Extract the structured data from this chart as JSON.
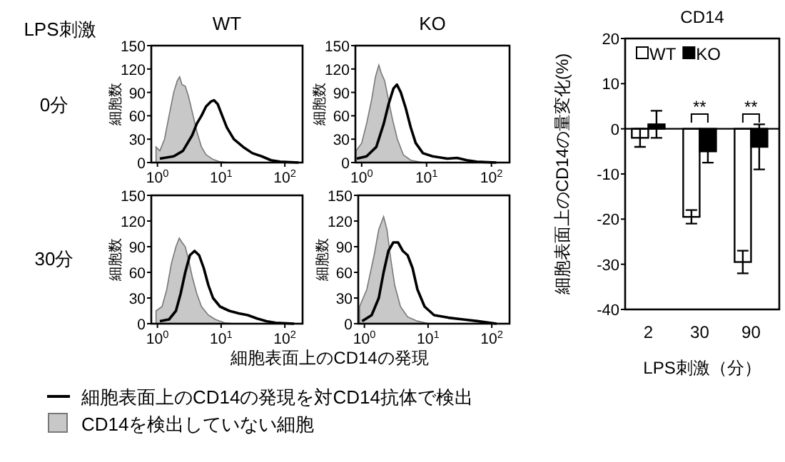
{
  "chart_data": [
    {
      "type": "line",
      "title": "WT",
      "ylabel": "細胞数",
      "annotations": [
        "LPS刺激",
        "0分"
      ],
      "log": "x",
      "legend": "bottom",
      "xlim": [
        0.8,
        190
      ],
      "ylim": [
        0,
        150
      ],
      "xticks": [
        {
          "value": 1,
          "label": "10$^{0}$"
        },
        {
          "value": 10,
          "label": "10$^{1}$"
        },
        {
          "value": 100,
          "label": "10$^{2}$"
        }
      ],
      "yticks": [
        0,
        30,
        60,
        90,
        120,
        150
      ],
      "series": [
        {
          "name": "細胞表面上のCD14の発現を対CD14抗体で検出",
          "color": "#000000",
          "x": [
            1.09,
            1.8,
            2.51,
            3.51,
            4.15,
            4.91,
            5.8,
            6.86,
            7.71,
            8.83,
            10.4,
            12.3,
            15.8,
            22.2,
            31,
            43.3,
            60.6,
            84.7,
            165
          ],
          "values": [
            5,
            8,
            15,
            35,
            50,
            60,
            72,
            78,
            80,
            75,
            60,
            45,
            30,
            20,
            12,
            8,
            3,
            1,
            0
          ]
        },
        {
          "type": "area",
          "name": "CD14を検出していない細胞",
          "color": "#c8c8c8",
          "x": [
            0.95,
            1.09,
            1.29,
            1.52,
            1.8,
            2.05,
            2.23,
            2.43,
            2.73,
            3.07,
            3.51,
            4.15,
            4.91,
            5.8,
            7.46,
            9.6,
            13.4
          ],
          "values": [
            20,
            15,
            30,
            60,
            90,
            105,
            110,
            100,
            98,
            85,
            65,
            40,
            20,
            10,
            4,
            1,
            0
          ]
        }
      ]
    },
    {
      "type": "line",
      "title": "KO",
      "ylabel": "細胞数",
      "log": "x",
      "xlim": [
        0.8,
        190
      ],
      "ylim": [
        0,
        150
      ],
      "xticks": [
        {
          "value": 1,
          "label": "10$^{0}$"
        },
        {
          "value": 10,
          "label": "10$^{1}$"
        },
        {
          "value": 100,
          "label": "10$^{2}$"
        }
      ],
      "yticks": [
        0,
        30,
        60,
        90,
        120,
        150
      ],
      "series": [
        {
          "color": "#000000",
          "x": [
            0.84,
            1.19,
            1.68,
            2.19,
            2.6,
            3.09,
            3.49,
            4.01,
            4.77,
            5.7,
            6.8,
            8.8,
            12.4,
            20.9,
            29.5,
            41.9,
            59.3,
            119
          ],
          "values": [
            5,
            8,
            20,
            50,
            75,
            95,
            100,
            90,
            70,
            45,
            25,
            12,
            8,
            5,
            6,
            3,
            1,
            0
          ]
        },
        {
          "type": "area",
          "color": "#c8c8c8",
          "x": [
            0.82,
            1,
            1.19,
            1.42,
            1.63,
            1.84,
            2,
            2.26,
            2.6,
            2.99,
            3.55,
            4.38,
            5.7,
            8.8
          ],
          "values": [
            15,
            25,
            50,
            80,
            110,
            125,
            115,
            105,
            80,
            55,
            30,
            10,
            3,
            0
          ]
        }
      ]
    },
    {
      "type": "line",
      "ylabel": "細胞数",
      "xlabel": "細胞表面上のCD14の発現",
      "annotations": [
        "30分"
      ],
      "log": "x",
      "xlim": [
        0.8,
        190
      ],
      "ylim": [
        0,
        150
      ],
      "xticks": [
        {
          "value": 1,
          "label": "10$^{0}$"
        },
        {
          "value": 10,
          "label": "10$^{1}$"
        },
        {
          "value": 100,
          "label": "10$^{2}$"
        }
      ],
      "yticks": [
        0,
        30,
        60,
        90,
        120,
        150
      ],
      "series": [
        {
          "color": "#000000",
          "x": [
            1.09,
            1.52,
            1.95,
            2.31,
            2.73,
            3.23,
            3.82,
            4.51,
            5.33,
            6.3,
            7.46,
            9.6,
            13.4,
            18.8,
            26.2,
            36.6,
            51.2,
            71.5,
            140
          ],
          "values": [
            3,
            5,
            15,
            35,
            60,
            80,
            85,
            80,
            65,
            45,
            30,
            20,
            15,
            12,
            10,
            6,
            3,
            1,
            0
          ]
        },
        {
          "type": "area",
          "color": "#c8c8c8",
          "x": [
            0.95,
            1.18,
            1.4,
            1.65,
            1.95,
            2.2,
            2.43,
            2.73,
            3.07,
            3.51,
            4.15,
            4.91,
            6.3,
            8.1,
            11.3,
            15.8
          ],
          "values": [
            15,
            20,
            40,
            70,
            90,
            100,
            95,
            90,
            75,
            55,
            35,
            20,
            10,
            5,
            1,
            0
          ]
        }
      ]
    },
    {
      "type": "line",
      "ylabel": "細胞数",
      "log": "x",
      "xlim": [
        0.8,
        190
      ],
      "ylim": [
        0,
        150
      ],
      "xticks": [
        {
          "value": 1,
          "label": "10$^{0}$"
        },
        {
          "value": 10,
          "label": "10$^{1}$"
        },
        {
          "value": 100,
          "label": "10$^{2}$"
        }
      ],
      "yticks": [
        0,
        30,
        60,
        90,
        120,
        150
      ],
      "series": [
        {
          "color": "#000000",
          "x": [
            0.92,
            1.3,
            1.68,
            2,
            2.38,
            2.84,
            3.37,
            4.01,
            4.77,
            5.7,
            6.8,
            8.8,
            12.4,
            20.9,
            35.3,
            59.3,
            119
          ],
          "values": [
            3,
            10,
            30,
            60,
            85,
            95,
            95,
            85,
            80,
            65,
            40,
            20,
            10,
            7,
            5,
            3,
            0
          ]
        },
        {
          "type": "area",
          "color": "#c8c8c8",
          "x": [
            0.84,
            1.09,
            1.42,
            1.68,
            2,
            2.26,
            2.6,
            2.99,
            3.68,
            4.77,
            6.8,
            10.4
          ],
          "values": [
            20,
            40,
            80,
            110,
            125,
            110,
            75,
            45,
            20,
            8,
            3,
            0
          ]
        }
      ]
    },
    {
      "type": "bar",
      "title": "CD14",
      "xlabel": "LPS刺激（分）",
      "ylabel": "細胞表面上のCD14の量変化(%)",
      "legend": "top",
      "categories": [
        "2",
        "30",
        "90"
      ],
      "ylim": [
        -40,
        20
      ],
      "yticks": [
        20,
        10,
        0,
        -10,
        -20,
        -30,
        -40
      ],
      "annotations": [
        "**",
        "**"
      ],
      "series": [
        {
          "name": "WT",
          "color": "#ffffff",
          "values": [
            -2,
            -19.5,
            -29.5
          ],
          "errors": [
            2,
            1.5,
            2.5
          ]
        },
        {
          "name": "KO",
          "color": "#000000",
          "values": [
            1,
            -5,
            -4
          ],
          "errors": [
            3,
            2.5,
            5
          ]
        }
      ]
    }
  ]
}
